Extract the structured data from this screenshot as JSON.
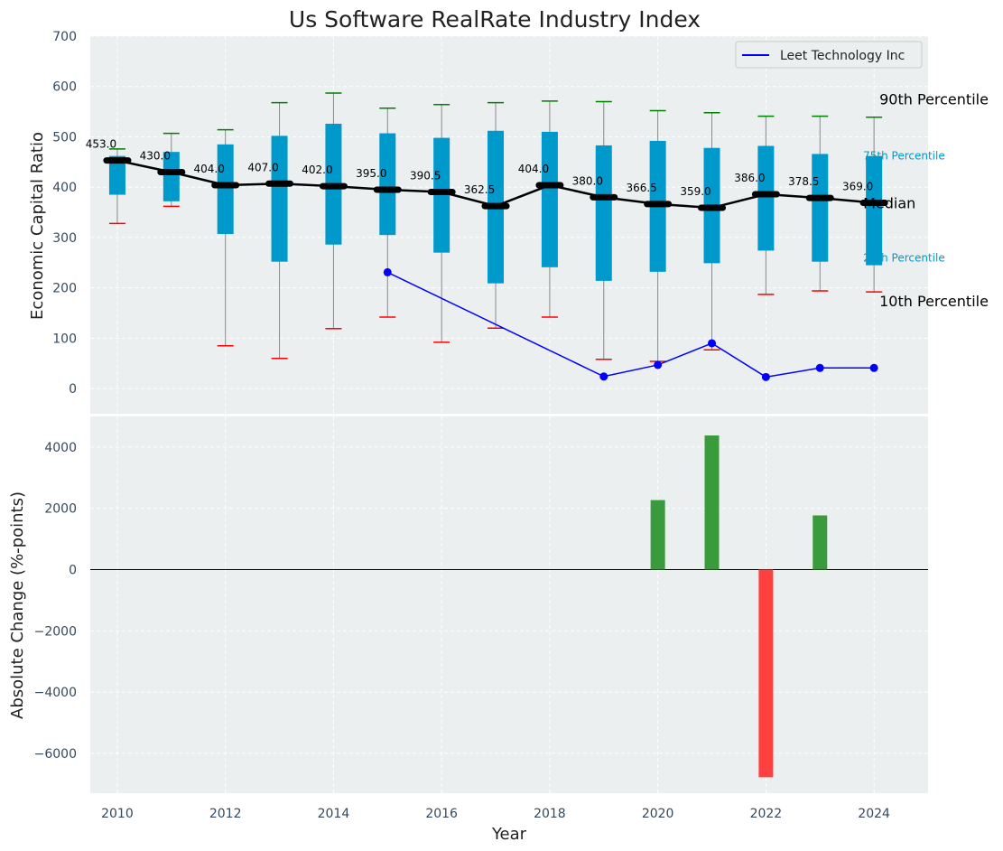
{
  "chart_data": [
    {
      "type": "box",
      "title": "Us Software RealRate Industry Index",
      "xlabel": "",
      "ylabel": "Economic Capital Ratio",
      "ylim": [
        -50,
        700
      ],
      "xlim": [
        2009.5,
        2025
      ],
      "yticks": [
        0,
        100,
        200,
        300,
        400,
        500,
        600,
        700
      ],
      "grid": true,
      "legend": {
        "placement": "top-right",
        "entries": [
          "Leet Technology Inc"
        ]
      },
      "colors": {
        "box": "#0099cc",
        "median": "#000000",
        "p90": "#008000",
        "p10": "#ff0000",
        "company": "#0000ff",
        "whisker": "#888888",
        "background": "#ebeff0"
      },
      "years": [
        2010,
        2011,
        2012,
        2013,
        2014,
        2015,
        2016,
        2017,
        2018,
        2019,
        2020,
        2021,
        2022,
        2023,
        2024
      ],
      "p10": [
        328,
        362,
        85,
        60,
        119,
        142,
        92,
        120,
        142,
        58,
        54,
        77,
        187,
        194,
        192
      ],
      "p25": [
        385,
        372,
        307,
        252,
        286,
        305,
        270,
        209,
        241,
        214,
        232,
        249,
        274,
        252,
        245
      ],
      "median": [
        453.0,
        430.0,
        404.0,
        407.0,
        402.0,
        395.0,
        390.5,
        362.5,
        404.0,
        380.0,
        366.5,
        359.0,
        386.0,
        378.5,
        369.0
      ],
      "median_labels": [
        "453.0",
        "430.0",
        "404.0",
        "407.0",
        "402.0",
        "395.0",
        "390.5",
        "362.5",
        "404.0",
        "380.0",
        "366.5",
        "359.0",
        "386.0",
        "378.5",
        "369.0"
      ],
      "p75": [
        462,
        470,
        485,
        502,
        526,
        507,
        498,
        512,
        510,
        483,
        492,
        478,
        482,
        466,
        462
      ],
      "p90": [
        476,
        507,
        514,
        568,
        587,
        557,
        564,
        568,
        571,
        570,
        552,
        548,
        541,
        541,
        539
      ],
      "series": [
        {
          "name": "Leet Technology Inc",
          "x": [
            2015,
            2019,
            2020,
            2021,
            2022,
            2023,
            2024
          ],
          "values": [
            231,
            24,
            47,
            90,
            23,
            41,
            41
          ]
        }
      ],
      "annotations": {
        "p90": "90th Percentile",
        "p75": "75th Percentile",
        "median": "Median",
        "p25": "25th Percentile",
        "p10": "10th Percentile"
      }
    },
    {
      "type": "bar",
      "xlabel": "Year",
      "ylabel": "Absolute Change (%-points)",
      "ylim": [
        -7300,
        5000
      ],
      "yticks": [
        -6000,
        -4000,
        -2000,
        0,
        2000,
        4000
      ],
      "xticks": [
        2010,
        2012,
        2014,
        2016,
        2018,
        2020,
        2022,
        2024
      ],
      "grid": true,
      "colors": {
        "positive": "#3a9b3c",
        "negative": "#ff4040"
      },
      "x": [
        2020,
        2021,
        2022,
        2023
      ],
      "values": [
        2270,
        4380,
        -6780,
        1770
      ]
    }
  ]
}
